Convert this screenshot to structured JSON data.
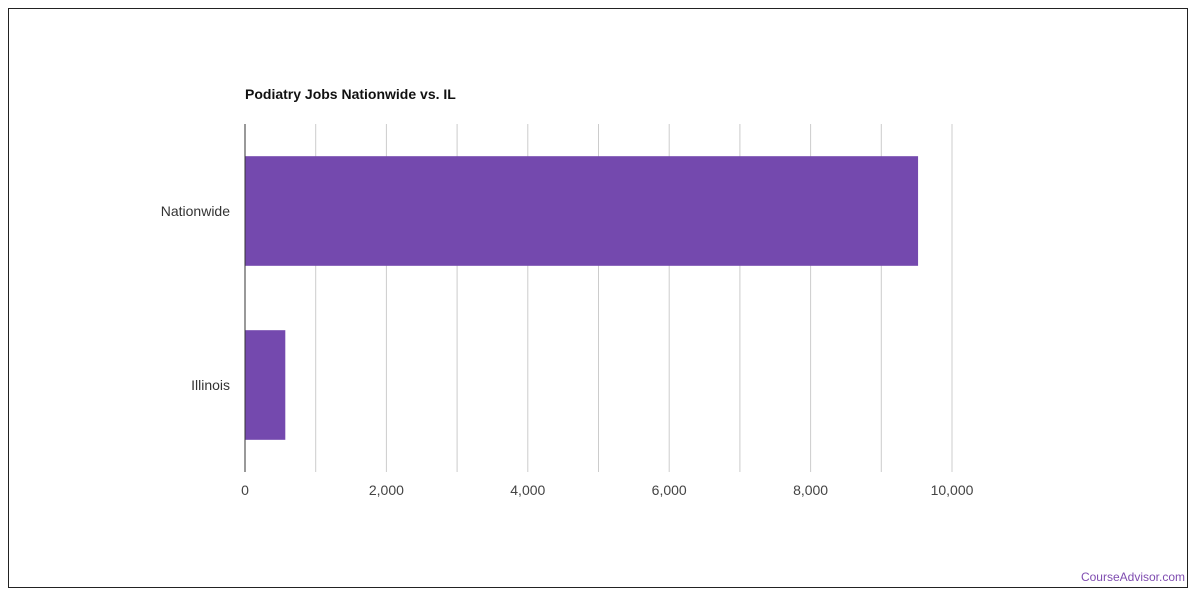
{
  "chart_data": {
    "type": "bar",
    "orientation": "horizontal",
    "title": "Podiatry Jobs Nationwide vs. IL",
    "categories": [
      "Nationwide",
      "Illinois"
    ],
    "values": [
      9520,
      570
    ],
    "xlim": [
      0,
      10000
    ],
    "xticks": [
      0,
      2000,
      4000,
      6000,
      8000,
      10000
    ],
    "xtick_labels": [
      "0",
      "2,000",
      "4,000",
      "6,000",
      "8,000",
      "10,000"
    ],
    "grid": true,
    "bar_color": "#7449ae"
  },
  "footer": {
    "credit": "CourseAdvisor.com",
    "credit_color": "#7f4cb0"
  }
}
